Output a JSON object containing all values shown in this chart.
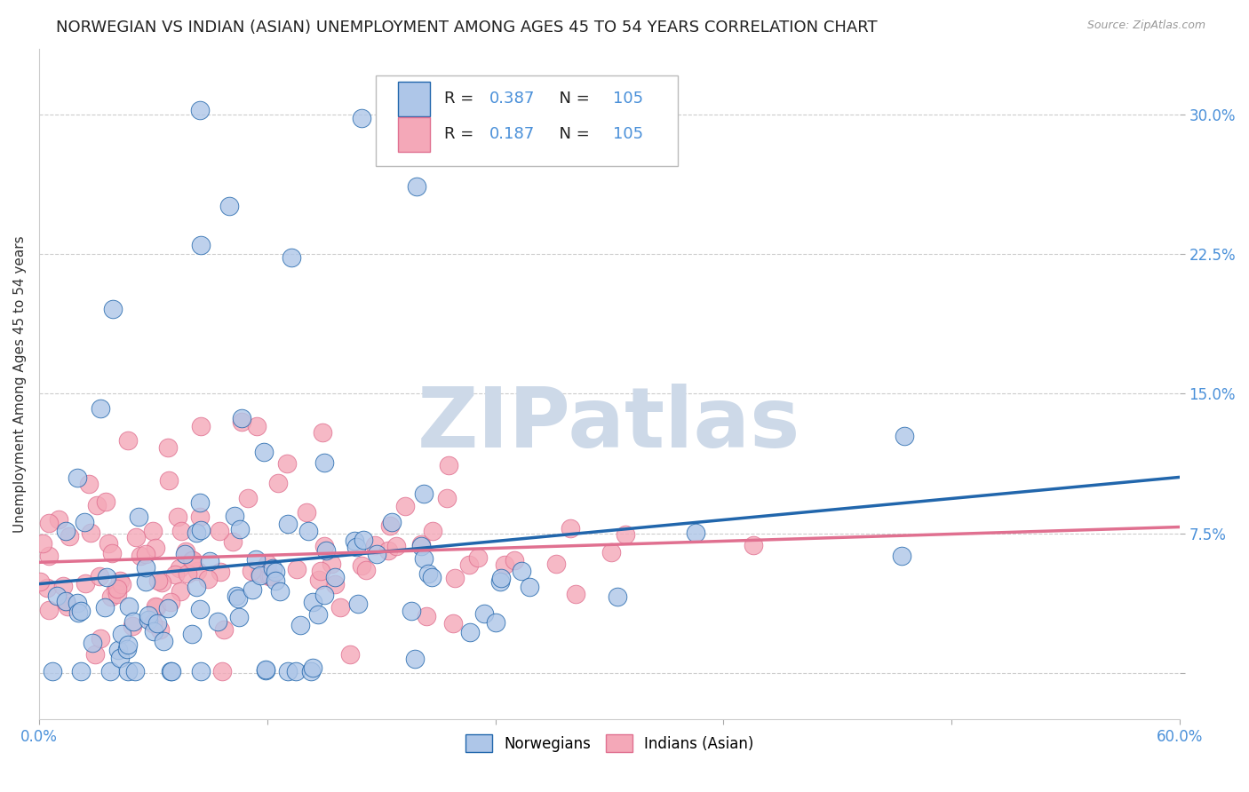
{
  "title": "NORWEGIAN VS INDIAN (ASIAN) UNEMPLOYMENT AMONG AGES 45 TO 54 YEARS CORRELATION CHART",
  "source": "Source: ZipAtlas.com",
  "ylabel": "Unemployment Among Ages 45 to 54 years",
  "xlim": [
    0.0,
    0.6
  ],
  "ylim": [
    -0.025,
    0.335
  ],
  "yticks": [
    0.0,
    0.075,
    0.15,
    0.225,
    0.3
  ],
  "ytick_labels": [
    "",
    "7.5%",
    "15.0%",
    "22.5%",
    "30.0%"
  ],
  "xticks": [
    0.0,
    0.12,
    0.24,
    0.36,
    0.48,
    0.6
  ],
  "xtick_labels": [
    "0.0%",
    "",
    "",
    "",
    "",
    "60.0%"
  ],
  "norwegian_R": 0.387,
  "indian_R": 0.187,
  "N": 105,
  "norwegian_color": "#aec6e8",
  "indian_color": "#f4a8b8",
  "norwegian_line_color": "#2166ac",
  "indian_line_color": "#e07090",
  "background_color": "#ffffff",
  "watermark": "ZIPatlas",
  "watermark_color": "#cdd9e8",
  "grid_color": "#cccccc",
  "title_fontsize": 13,
  "axis_label_fontsize": 11,
  "tick_label_color": "#4a90d9",
  "seed": 42,
  "norw_line_start": 0.03,
  "norw_line_end": 0.09,
  "ind_line_start": 0.05,
  "ind_line_end": 0.068
}
